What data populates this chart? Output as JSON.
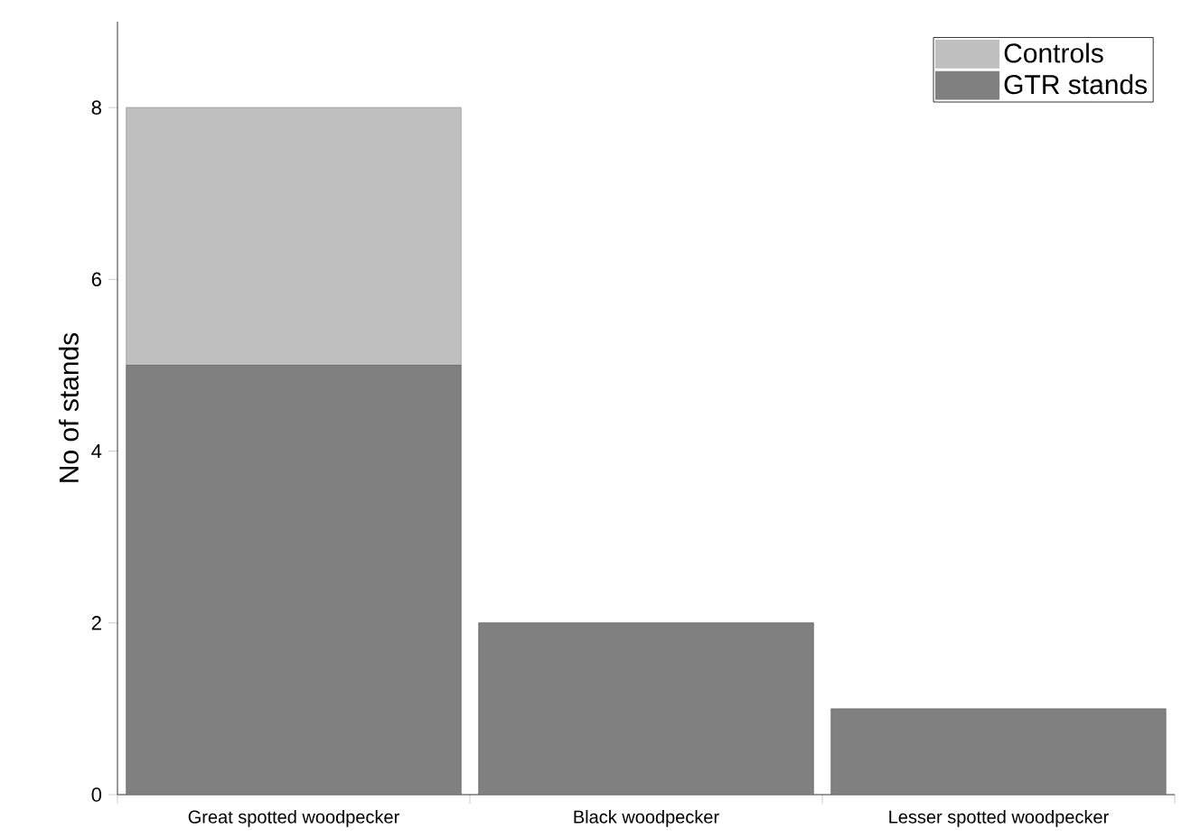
{
  "chart_data": {
    "type": "bar",
    "ylabel": "No of stands",
    "categories": [
      "Great spotted woodpecker",
      "Black woodpecker",
      "Lesser spotted woodpecker"
    ],
    "stacked": true,
    "series": [
      {
        "name": "GTR stands",
        "color": "#808080",
        "values": [
          5,
          2,
          1
        ]
      },
      {
        "name": "Controls",
        "color": "#bfbfbf",
        "values": [
          3,
          0,
          0
        ]
      }
    ],
    "ylim": [
      0,
      9
    ],
    "yticks": [
      0,
      2,
      4,
      6,
      8
    ],
    "legend": "top right",
    "grid": false
  }
}
